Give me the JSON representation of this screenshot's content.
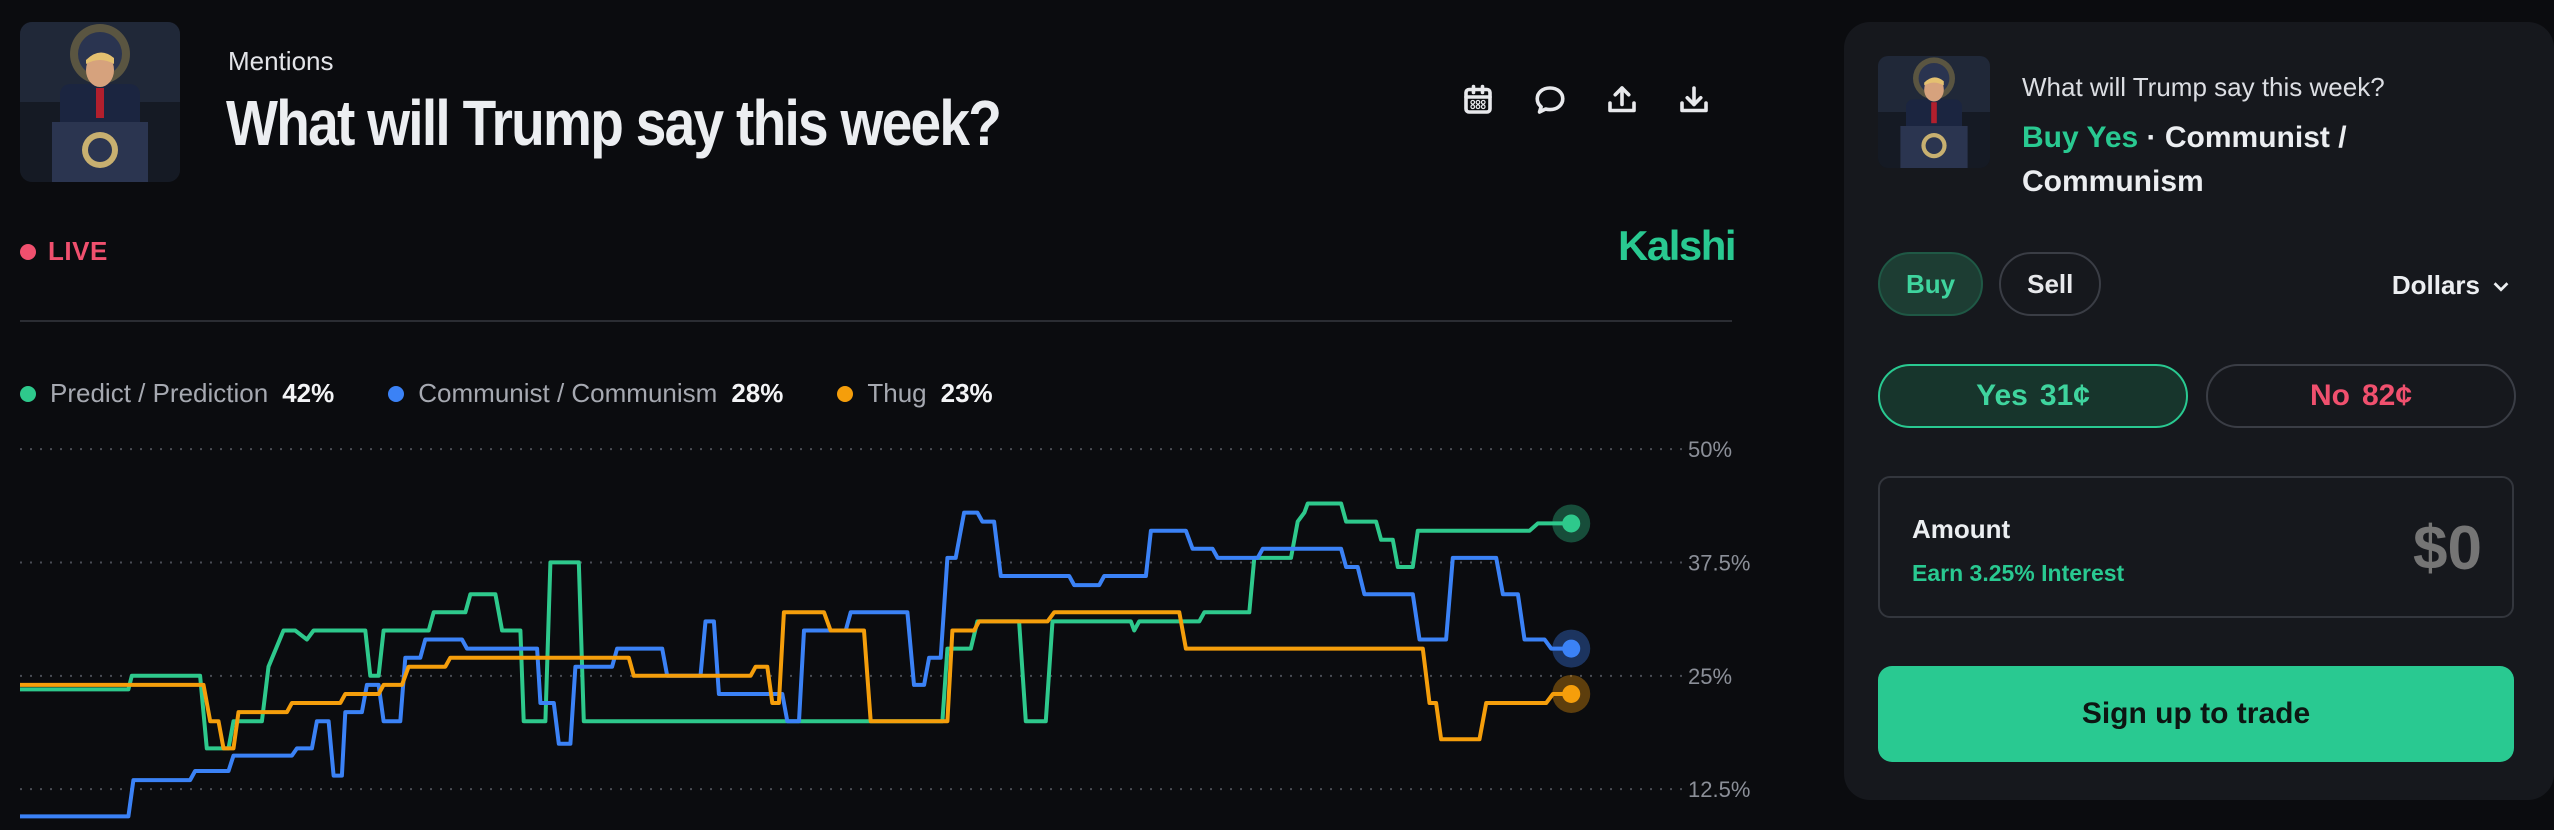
{
  "market": {
    "category": "Mentions",
    "title": "What will Trump say this week?",
    "thumbnail_alt": "Trump at podium"
  },
  "toolbar": {
    "icons": [
      "calendar-icon",
      "comment-icon",
      "share-icon",
      "download-icon"
    ]
  },
  "status": {
    "live_label": "LIVE",
    "color": "#f0506e"
  },
  "brand": {
    "name": "Kalshi",
    "color": "#29c991"
  },
  "legend": [
    {
      "name": "Predict / Prediction",
      "value": "42%",
      "color": "#2ec98c"
    },
    {
      "name": "Communist / Communism",
      "value": "28%",
      "color": "#3b82f6"
    },
    {
      "name": "Thug",
      "value": "23%",
      "color": "#f59e0b"
    }
  ],
  "chart_data": {
    "type": "line",
    "y_ticks": [
      "12.5%",
      "25%",
      "37.5%",
      "50%"
    ],
    "y_tick_values": [
      12.5,
      25,
      37.5,
      50
    ],
    "ylim": [
      8,
      51
    ],
    "xlim": [
      0,
      100
    ],
    "grid": true,
    "series": [
      {
        "name": "Predict / Prediction",
        "color": "#2ec98c",
        "end_value": 41.8,
        "points": [
          [
            0,
            23.5
          ],
          [
            6.5,
            23.5
          ],
          [
            6.7,
            25
          ],
          [
            10.8,
            25
          ],
          [
            11.2,
            17
          ],
          [
            12.5,
            17
          ],
          [
            12.8,
            20
          ],
          [
            14.5,
            20
          ],
          [
            14.9,
            26
          ],
          [
            15.8,
            30
          ],
          [
            16.5,
            30
          ],
          [
            17.2,
            29
          ],
          [
            17.6,
            30
          ],
          [
            20.7,
            30
          ],
          [
            21,
            25
          ],
          [
            21.5,
            25
          ],
          [
            21.8,
            30
          ],
          [
            24.5,
            30
          ],
          [
            24.8,
            32
          ],
          [
            26.7,
            32
          ],
          [
            27,
            34
          ],
          [
            28.5,
            34
          ],
          [
            28.9,
            30
          ],
          [
            30,
            30
          ],
          [
            30.2,
            20
          ],
          [
            31.5,
            20
          ],
          [
            31.8,
            37.5
          ],
          [
            33.5,
            37.5
          ],
          [
            33.8,
            20
          ],
          [
            55.3,
            20
          ],
          [
            55.6,
            28
          ],
          [
            57,
            28
          ],
          [
            57.4,
            31
          ],
          [
            59.9,
            31
          ],
          [
            60.3,
            20
          ],
          [
            61.5,
            20
          ],
          [
            61.9,
            31
          ],
          [
            66.6,
            31
          ],
          [
            66.8,
            30
          ],
          [
            67.1,
            31
          ],
          [
            70.7,
            31
          ],
          [
            71,
            32
          ],
          [
            73.7,
            32
          ],
          [
            74,
            38
          ],
          [
            76.2,
            38
          ],
          [
            76.6,
            42
          ],
          [
            77,
            43
          ],
          [
            77.2,
            44
          ],
          [
            79.2,
            44
          ],
          [
            79.5,
            42
          ],
          [
            81.3,
            42
          ],
          [
            81.6,
            40
          ],
          [
            82.3,
            40
          ],
          [
            82.6,
            37
          ],
          [
            83.5,
            37
          ],
          [
            83.8,
            41
          ],
          [
            90.5,
            41
          ],
          [
            91,
            41.8
          ],
          [
            93,
            41.8
          ]
        ]
      },
      {
        "name": "Communist / Communism",
        "color": "#3b82f6",
        "end_value": 28,
        "points": [
          [
            0,
            9.5
          ],
          [
            6.5,
            9.5
          ],
          [
            6.8,
            13.5
          ],
          [
            10.2,
            13.5
          ],
          [
            10.5,
            14.5
          ],
          [
            12.5,
            14.5
          ],
          [
            12.8,
            16.2
          ],
          [
            16.3,
            16.2
          ],
          [
            16.6,
            17
          ],
          [
            17.5,
            17
          ],
          [
            17.8,
            20
          ],
          [
            18.5,
            20
          ],
          [
            18.8,
            14
          ],
          [
            19.3,
            14
          ],
          [
            19.5,
            21
          ],
          [
            20.5,
            21
          ],
          [
            20.8,
            24
          ],
          [
            21.5,
            24
          ],
          [
            21.8,
            20
          ],
          [
            22.8,
            20
          ],
          [
            23.1,
            27
          ],
          [
            24,
            27
          ],
          [
            24.3,
            29
          ],
          [
            26.5,
            29
          ],
          [
            26.8,
            28
          ],
          [
            31,
            28
          ],
          [
            31.2,
            22
          ],
          [
            32,
            22
          ],
          [
            32.3,
            17.5
          ],
          [
            33,
            17.5
          ],
          [
            33.3,
            26
          ],
          [
            35.5,
            26
          ],
          [
            35.8,
            28
          ],
          [
            38.5,
            28
          ],
          [
            38.8,
            25
          ],
          [
            40.8,
            25
          ],
          [
            41.1,
            31
          ],
          [
            41.6,
            31
          ],
          [
            41.9,
            23
          ],
          [
            45.7,
            23
          ],
          [
            46,
            20
          ],
          [
            46.7,
            20
          ],
          [
            47,
            30
          ],
          [
            49.5,
            30
          ],
          [
            49.8,
            32
          ],
          [
            53.2,
            32
          ],
          [
            53.6,
            24
          ],
          [
            54.2,
            24
          ],
          [
            54.5,
            27
          ],
          [
            55.2,
            27
          ],
          [
            55.6,
            38
          ],
          [
            56.1,
            38
          ],
          [
            56.6,
            43
          ],
          [
            57.4,
            43
          ],
          [
            57.7,
            42
          ],
          [
            58.4,
            42
          ],
          [
            58.8,
            36
          ],
          [
            62.9,
            36
          ],
          [
            63.2,
            35
          ],
          [
            64.7,
            35
          ],
          [
            65,
            36
          ],
          [
            67.5,
            36
          ],
          [
            67.8,
            41
          ],
          [
            69.9,
            41
          ],
          [
            70.3,
            39
          ],
          [
            71.5,
            39
          ],
          [
            71.8,
            38
          ],
          [
            74.2,
            38
          ],
          [
            74.5,
            39
          ],
          [
            79.2,
            39
          ],
          [
            79.5,
            37
          ],
          [
            80.2,
            37
          ],
          [
            80.6,
            34
          ],
          [
            83.5,
            34
          ],
          [
            83.9,
            29
          ],
          [
            85.5,
            29
          ],
          [
            85.9,
            38
          ],
          [
            88.5,
            38
          ],
          [
            88.9,
            34
          ],
          [
            89.8,
            34
          ],
          [
            90.2,
            29
          ],
          [
            91.4,
            29
          ],
          [
            91.8,
            28
          ],
          [
            93,
            28
          ]
        ]
      },
      {
        "name": "Thug",
        "color": "#f59e0b",
        "end_value": 23,
        "points": [
          [
            0,
            24
          ],
          [
            11,
            24
          ],
          [
            11.4,
            20
          ],
          [
            11.9,
            20
          ],
          [
            12.2,
            17
          ],
          [
            12.8,
            17
          ],
          [
            13.1,
            21
          ],
          [
            16,
            21
          ],
          [
            16.3,
            22
          ],
          [
            19.2,
            22
          ],
          [
            19.5,
            23
          ],
          [
            21.5,
            23
          ],
          [
            21.8,
            24
          ],
          [
            22.9,
            24
          ],
          [
            23.3,
            26
          ],
          [
            25.5,
            26
          ],
          [
            25.8,
            27
          ],
          [
            36.5,
            27
          ],
          [
            36.8,
            25
          ],
          [
            43.8,
            25
          ],
          [
            44.1,
            26
          ],
          [
            44.8,
            26
          ],
          [
            45.1,
            22
          ],
          [
            45.5,
            22
          ],
          [
            45.8,
            32
          ],
          [
            48.2,
            32
          ],
          [
            48.6,
            30
          ],
          [
            50.6,
            30
          ],
          [
            51,
            20
          ],
          [
            55.6,
            20
          ],
          [
            55.9,
            30
          ],
          [
            57.2,
            30
          ],
          [
            57.5,
            31
          ],
          [
            61.6,
            31
          ],
          [
            62,
            32
          ],
          [
            69.5,
            32
          ],
          [
            69.9,
            28
          ],
          [
            84.1,
            28
          ],
          [
            84.5,
            22
          ],
          [
            84.9,
            22
          ],
          [
            85.2,
            18
          ],
          [
            87.5,
            18
          ],
          [
            87.9,
            22
          ],
          [
            91.5,
            22
          ],
          [
            91.9,
            23
          ],
          [
            93,
            23
          ]
        ]
      }
    ]
  },
  "trade_panel": {
    "question": "What will Trump say this week?",
    "side": "Buy Yes",
    "separator": " · ",
    "selection": "Communist / Communism",
    "tabs": [
      {
        "label": "Buy",
        "active": true
      },
      {
        "label": "Sell",
        "active": false
      }
    ],
    "unit": "Dollars",
    "yes": {
      "label": "Yes",
      "price": "31¢"
    },
    "no": {
      "label": "No",
      "price": "82¢"
    },
    "amount": {
      "label": "Amount",
      "interest": "Earn 3.25% Interest",
      "placeholder": "$0"
    },
    "cta": "Sign up to trade"
  }
}
